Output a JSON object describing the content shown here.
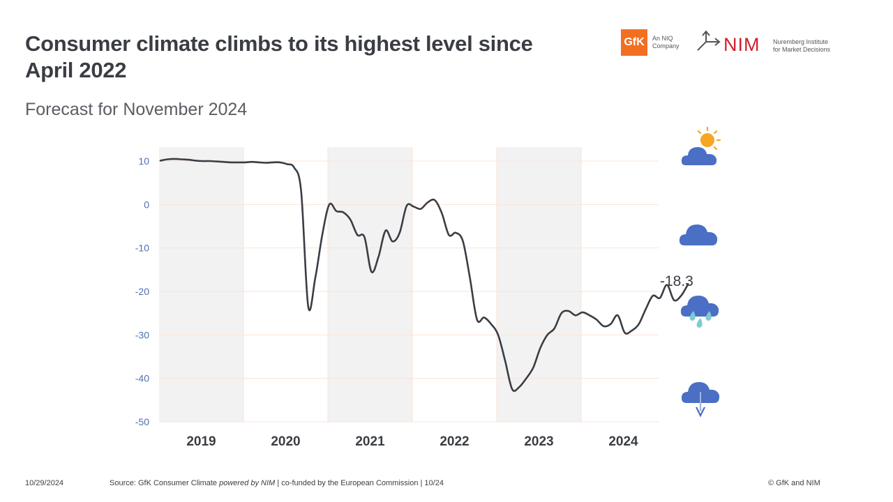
{
  "header": {
    "title": "Consumer climate climbs to its highest level since April 2022",
    "subtitle": "Forecast for November 2024"
  },
  "logos": {
    "gfk_mark": "GfK",
    "gfk_tag_line1": "An NIQ",
    "gfk_tag_line2": "Company",
    "nim_mark": "NIM",
    "nim_tag_line1": "Nuremberg Institute",
    "nim_tag_line2": "for Market Decisions"
  },
  "icons": {
    "top": "sun-behind-cloud-icon",
    "upper_mid": "cloud-icon",
    "lower_mid": "rain-cloud-icon",
    "bottom": "cloud-down-arrow-icon"
  },
  "colors": {
    "line": "#3a3d43",
    "axis_text": "#4d6fb3",
    "year_band": "#f2f2f2",
    "gridline": "#fbe3d6",
    "cloud": "#4a6fc4",
    "rain": "#7ecbd6",
    "sun": "#f5a623"
  },
  "chart_data": {
    "type": "line",
    "ylim": [
      -50,
      10
    ],
    "yticks": [
      "10",
      "0",
      "-10",
      "-20",
      "-30",
      "-40",
      "-50"
    ],
    "year_labels": [
      "2019",
      "2020",
      "2021",
      "2022",
      "2023",
      "2024"
    ],
    "shaded_years": [
      "2019",
      "2021",
      "2023"
    ],
    "last_value_label": "-18.3",
    "series": [
      {
        "values": [
          10.1,
          10.4,
          10.5,
          10.4,
          10.3,
          10.1,
          10.0,
          10.0,
          9.9,
          9.8,
          9.7,
          9.7,
          9.7,
          9.8,
          9.7,
          9.6,
          9.7,
          9.7,
          9.3,
          8.5,
          3.0,
          -23.5,
          -17.0,
          -7.0,
          0.0,
          -1.5,
          -1.8,
          -3.5,
          -7.0,
          -7.5,
          -15.5,
          -12.0,
          -6.0,
          -8.5,
          -6.5,
          -0.3,
          -0.5,
          -1.0,
          0.5,
          1.0,
          -2.0,
          -7.0,
          -6.5,
          -8.5,
          -17.0,
          -26.5,
          -26.0,
          -27.5,
          -30.0,
          -36.0,
          -42.5,
          -42.0,
          -40.0,
          -37.5,
          -33.0,
          -30.0,
          -28.5,
          -25.0,
          -24.5,
          -25.5,
          -24.8,
          -25.5,
          -26.5,
          -28.0,
          -27.5,
          -25.5,
          -29.5,
          -29.0,
          -27.5,
          -24.0,
          -21.0,
          -21.5,
          -18.5,
          -22.0,
          -21.0,
          -18.3
        ]
      }
    ]
  },
  "footer": {
    "date": "10/29/2024",
    "source_prefix": "Source: GfK Consumer Climate ",
    "source_em": "powered by NIM",
    "source_suffix": " | co-funded by the European Commission | 10/24",
    "copyright": "© GfK and NIM"
  }
}
